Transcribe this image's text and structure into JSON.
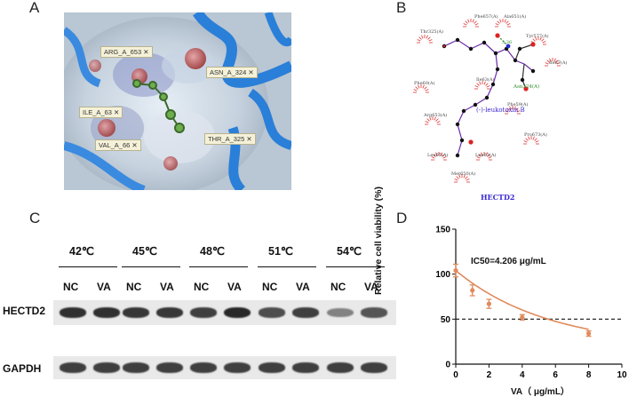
{
  "panel_labels": {
    "a": "A",
    "b": "B",
    "c": "C",
    "d": "D"
  },
  "panel_a": {
    "residues": [
      "ARG_A_653",
      "ASN_A_324",
      "ILE_A_63",
      "VAL_A_66",
      "THR_A_325"
    ],
    "close_glyph": "✕"
  },
  "panel_b": {
    "ligand": "(-)-leukotoxin B",
    "bonded_residue": "Asn324(A)",
    "bond_distance": "3.36",
    "residues": [
      "Thr325(A)",
      "Phe657(A)",
      "Ala651(A)",
      "Tyr577(A)",
      "Ile67(A)",
      "Phe60(A)",
      "Ile63(A)",
      "Phe59(A)",
      "Arg653(A)",
      "Pro673(A)",
      "Leu65(A)",
      "Leu63(A)",
      "Met650(A)"
    ],
    "protein": "HECTD2"
  },
  "panel_c": {
    "temperatures": [
      "42℃",
      "45℃",
      "48℃",
      "51℃",
      "54℃"
    ],
    "lane_labels": [
      "NC",
      "VA",
      "NC",
      "VA",
      "NC",
      "VA",
      "NC",
      "VA",
      "NC",
      "VA"
    ],
    "rows": [
      "HECTD2",
      "GAPDH"
    ],
    "band_intensity": {
      "HECTD2": [
        0.95,
        0.95,
        0.9,
        0.9,
        0.85,
        1.0,
        0.75,
        0.85,
        0.4,
        0.7
      ],
      "GAPDH": [
        0.85,
        0.85,
        0.85,
        0.85,
        0.85,
        0.85,
        0.85,
        0.85,
        0.85,
        0.85
      ]
    }
  },
  "chart_data": {
    "type": "scatter",
    "annotation": "IC50=4.206 μg/mL",
    "xlabel": "VA（ μg/mL）",
    "ylabel": "Relative cell viability (%)",
    "xlim": [
      0,
      10
    ],
    "ylim": [
      0,
      150
    ],
    "xticks": [
      "0",
      "2",
      "4",
      "6",
      "8",
      "10"
    ],
    "yticks": [
      "0",
      "50",
      "100",
      "150"
    ],
    "x": [
      0,
      1,
      2,
      4,
      8
    ],
    "y": [
      104,
      82,
      67,
      52,
      34
    ],
    "error": [
      7,
      6,
      5,
      3,
      3
    ],
    "fit_curve": {
      "model": "exponential decay",
      "ic50": 4.206
    },
    "reference_line": {
      "y": 50,
      "style": "dashed"
    },
    "color": "#e08a5c"
  }
}
